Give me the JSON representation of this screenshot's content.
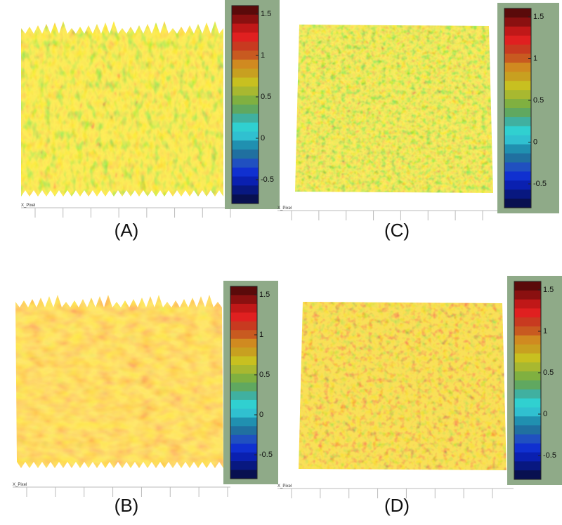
{
  "panels": [
    {
      "label": "(A)",
      "axis_label": "X_Pixel",
      "colorbar_ticks": [
        1.5,
        1,
        0.5,
        0,
        -0.5
      ]
    },
    {
      "label": "(B)",
      "axis_label": "X_Pixel",
      "colorbar_ticks": [
        1.5,
        1,
        0.5,
        0,
        -0.5
      ]
    },
    {
      "label": "(C)",
      "axis_label": "X_Pixel",
      "colorbar_ticks": [
        1.5,
        1,
        0.5,
        0,
        -0.5
      ]
    },
    {
      "label": "(D)",
      "axis_label": "X_Pixel",
      "colorbar_ticks": [
        1.5,
        1,
        0.5,
        0,
        -0.5
      ]
    }
  ]
}
